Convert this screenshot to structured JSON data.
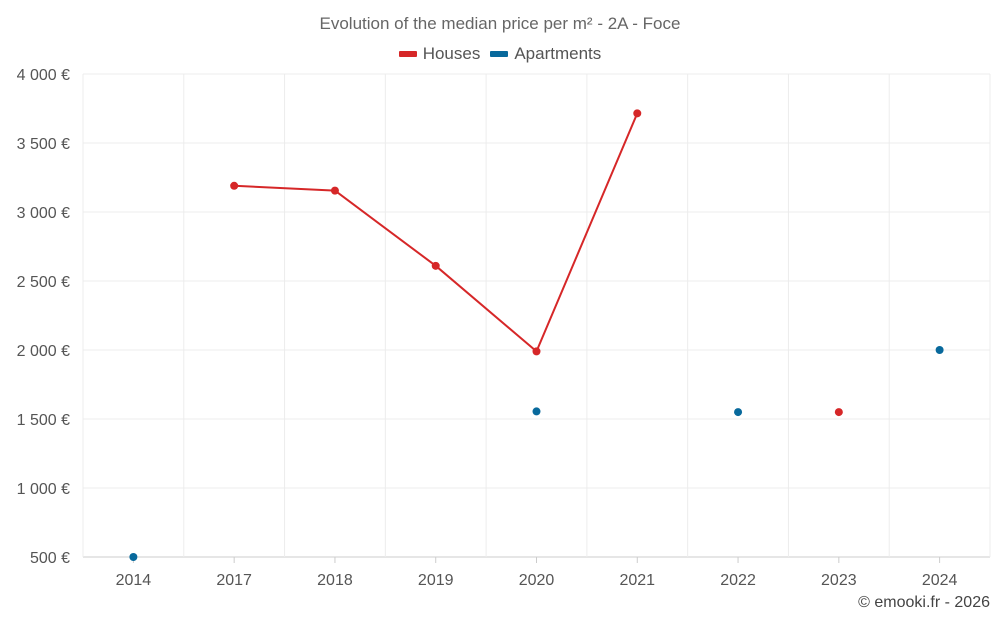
{
  "chart_data": {
    "type": "line",
    "title": "Evolution of the median price per m² - 2A - Foce",
    "categories": [
      "2014",
      "2017",
      "2018",
      "2019",
      "2020",
      "2021",
      "2022",
      "2023",
      "2024"
    ],
    "ylim": [
      500,
      4000
    ],
    "yticks": [
      500,
      1000,
      1500,
      2000,
      2500,
      3000,
      3500,
      4000
    ],
    "ytick_labels": [
      "500 €",
      "1 000 €",
      "1 500 €",
      "2 000 €",
      "2 500 €",
      "3 000 €",
      "3 500 €",
      "4 000 €"
    ],
    "series": [
      {
        "name": "Houses",
        "color": "#d62728",
        "values": [
          null,
          3190,
          3155,
          2610,
          1990,
          3715,
          null,
          1550,
          null
        ]
      },
      {
        "name": "Apartments",
        "color": "#08699c",
        "values": [
          500,
          null,
          null,
          null,
          1555,
          null,
          1550,
          null,
          2000
        ]
      }
    ],
    "grid": true,
    "legend_position": "top-center"
  },
  "credit": "© emooki.fr - 2026"
}
